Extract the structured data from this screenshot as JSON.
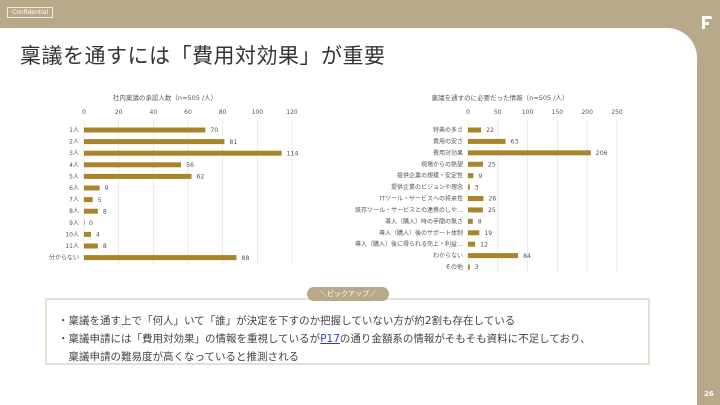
{
  "header": {
    "confidential_label": "Confidential",
    "logo_text": "F",
    "page_number": "26"
  },
  "title": "稟議を通すには「費用対効果」が重要",
  "colors": {
    "bar": "#a8842a",
    "brand": "#b8a98b",
    "link": "#2a3fd6"
  },
  "chart_data": [
    {
      "type": "bar",
      "orientation": "horizontal",
      "title": "社内稟議の承認人数（n=505 /人）",
      "categories": [
        "1人",
        "2人",
        "3人",
        "4人",
        "5人",
        "6人",
        "7人",
        "8人",
        "9人",
        "10人",
        "11人",
        "分からない"
      ],
      "values": [
        70,
        81,
        114,
        56,
        62,
        9,
        5,
        8,
        0,
        4,
        8,
        88
      ],
      "xlim": [
        0,
        120
      ],
      "ticks": [
        0,
        20,
        40,
        60,
        80,
        100,
        120
      ],
      "grid": true
    },
    {
      "type": "bar",
      "orientation": "horizontal",
      "title": "稟議を通すのに必要だった情報（n=505 /人）",
      "categories": [
        "特典の多さ",
        "費用の安さ",
        "費用対効果",
        "現場からの熱望",
        "提供企業の規模・安定性",
        "提供企業のビジョンや理念",
        "ITツール・サービスへの将来性",
        "既存ツール・サービスとの連携のしや…",
        "導入（購入）時の手間の無さ",
        "導入（購入）後のサポート体制",
        "導入（購入）後に得られる売上・利益…",
        "わからない",
        "その他"
      ],
      "values": [
        22,
        63,
        206,
        25,
        9,
        3,
        26,
        25,
        8,
        19,
        12,
        84,
        3
      ],
      "xlim": [
        0,
        250
      ],
      "ticks": [
        0,
        50,
        100,
        150,
        200,
        250
      ],
      "grid": true
    }
  ],
  "pickup": {
    "badge": "＼ピックアップ／",
    "line1": "・稟議を通す上で「何人」いて「誰」が決定を下すのか把握していない方が約2割も存在している",
    "line2_before": "・稟議申請には「費用対効果」の情報を重視しているが",
    "line2_link": "P17",
    "line2_after": "の通り金額系の情報がそもそも資料に不足しており、",
    "line3": "　稟議申請の難易度が高くなっていると推測される"
  }
}
